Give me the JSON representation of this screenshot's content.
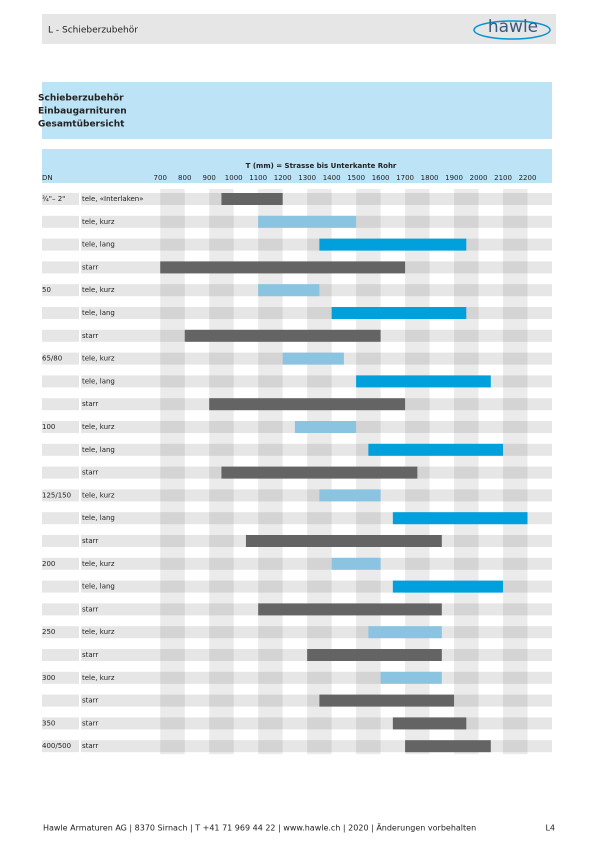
{
  "header": {
    "section": "L - Schieberzubehör",
    "logo": "hawle"
  },
  "title_box": {
    "lines": [
      "Schieberzubehör",
      "Einbaugarnituren",
      "Gesamtübersicht"
    ]
  },
  "chart_data": {
    "type": "range_bar",
    "title": "T (mm) = Strasse bis Unterkante Rohr",
    "dn_header": "DN",
    "xlim": [
      650,
      2300
    ],
    "xticks": [
      700,
      800,
      900,
      1000,
      1100,
      1200,
      1300,
      1400,
      1500,
      1600,
      1700,
      1800,
      1900,
      2000,
      2100,
      2200
    ],
    "rows": [
      {
        "dn": "¾\"– 2\"",
        "mount": "tele, «Interlaken»",
        "range": [
          950,
          1200
        ],
        "color": "#646464"
      },
      {
        "dn": null,
        "mount": "tele, kurz",
        "range": [
          1100,
          1500
        ],
        "color": "#8ac4e0"
      },
      {
        "dn": null,
        "mount": "tele, lang",
        "range": [
          1350,
          1950
        ],
        "color": "#00a0dc"
      },
      {
        "dn": null,
        "mount": "starr",
        "range": [
          700,
          1700
        ],
        "color": "#646464"
      },
      {
        "dn": "50",
        "mount": "tele, kurz",
        "range": [
          1100,
          1350
        ],
        "color": "#8ac4e0"
      },
      {
        "dn": null,
        "mount": "tele, lang",
        "range": [
          1400,
          1950
        ],
        "color": "#00a0dc"
      },
      {
        "dn": null,
        "mount": "starr",
        "range": [
          800,
          1600
        ],
        "color": "#646464"
      },
      {
        "dn": "65/80",
        "mount": "tele, kurz",
        "range": [
          1200,
          1450
        ],
        "color": "#8ac4e0"
      },
      {
        "dn": null,
        "mount": "tele, lang",
        "range": [
          1500,
          2050
        ],
        "color": "#00a0dc"
      },
      {
        "dn": null,
        "mount": "starr",
        "range": [
          900,
          1700
        ],
        "color": "#646464"
      },
      {
        "dn": "100",
        "mount": "tele, kurz",
        "range": [
          1250,
          1500
        ],
        "color": "#8ac4e0"
      },
      {
        "dn": null,
        "mount": "tele, lang",
        "range": [
          1550,
          2100
        ],
        "color": "#00a0dc"
      },
      {
        "dn": null,
        "mount": "starr",
        "range": [
          950,
          1750
        ],
        "color": "#646464"
      },
      {
        "dn": "125/150",
        "mount": "tele, kurz",
        "range": [
          1350,
          1600
        ],
        "color": "#8ac4e0"
      },
      {
        "dn": null,
        "mount": "tele, lang",
        "range": [
          1650,
          2200
        ],
        "color": "#00a0dc"
      },
      {
        "dn": null,
        "mount": "starr",
        "range": [
          1050,
          1850
        ],
        "color": "#646464"
      },
      {
        "dn": "200",
        "mount": "tele, kurz",
        "range": [
          1400,
          1600
        ],
        "color": "#8ac4e0"
      },
      {
        "dn": null,
        "mount": "tele, lang",
        "range": [
          1650,
          2100
        ],
        "color": "#00a0dc"
      },
      {
        "dn": null,
        "mount": "starr",
        "range": [
          1100,
          1850
        ],
        "color": "#646464"
      },
      {
        "dn": "250",
        "mount": "tele, kurz",
        "range": [
          1550,
          1850
        ],
        "color": "#8ac4e0"
      },
      {
        "dn": null,
        "mount": "starr",
        "range": [
          1300,
          1850
        ],
        "color": "#646464"
      },
      {
        "dn": "300",
        "mount": "tele, kurz",
        "range": [
          1600,
          1850
        ],
        "color": "#8ac4e0"
      },
      {
        "dn": null,
        "mount": "starr",
        "range": [
          1350,
          1900
        ],
        "color": "#646464"
      },
      {
        "dn": "350",
        "mount": "starr",
        "range": [
          1650,
          1950
        ],
        "color": "#646464"
      },
      {
        "dn": "400/500",
        "mount": "starr",
        "range": [
          1700,
          2050
        ],
        "color": "#646464"
      }
    ]
  },
  "footer": {
    "text": "Hawle Armaturen AG | 8370 Sirnach | T +41 71 969 44 22 | www.hawle.ch | 2020 | Änderungen vorbehalten",
    "page": "L4"
  }
}
